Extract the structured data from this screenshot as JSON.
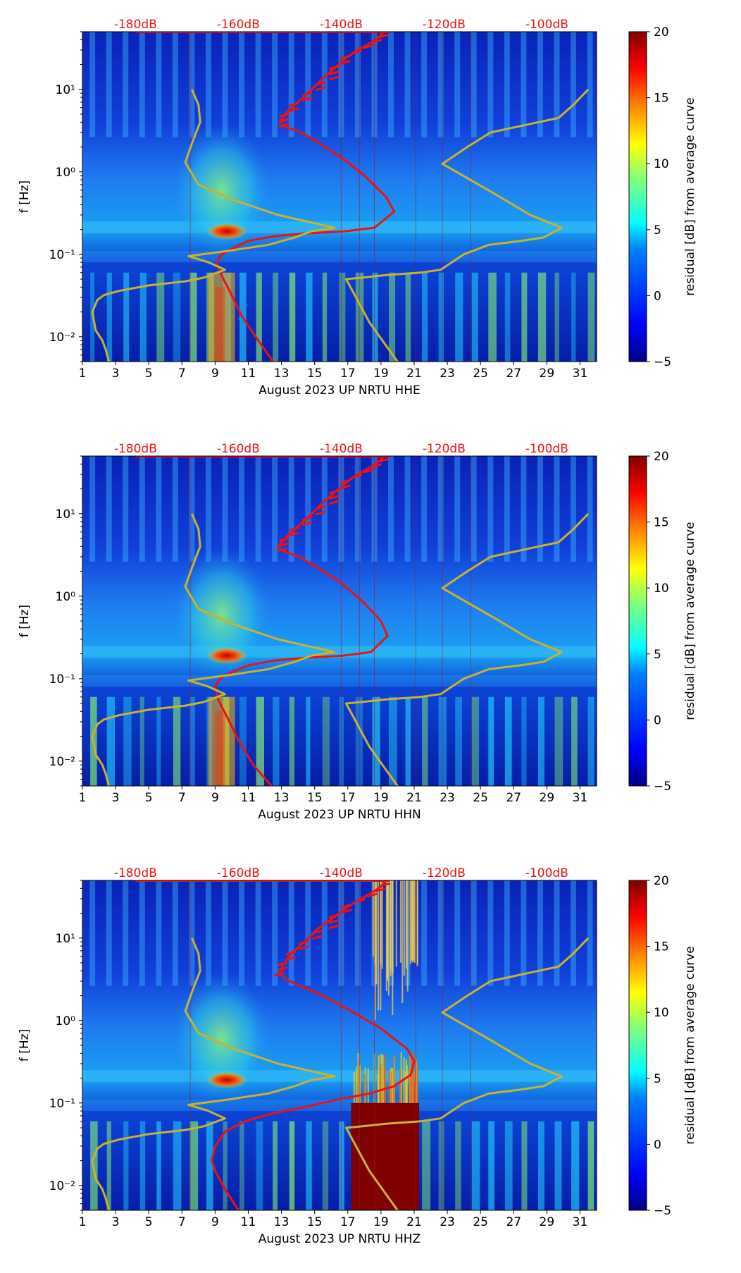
{
  "colors": {
    "red_curve": "#ee1111",
    "yellow_curve": "#c8b22e",
    "db_label": "#ee1111",
    "background_blue": "#0a2ec8",
    "colormap": [
      "#00007f",
      "#0000ff",
      "#007fff",
      "#00ffff",
      "#7fff7f",
      "#ffff00",
      "#ff7f00",
      "#ff0000",
      "#7f0000"
    ]
  },
  "chart_data": [
    {
      "type": "heatmap",
      "title": "",
      "xlabel": "August 2023 UP NRTU  HHE",
      "ylabel": "f [Hz]",
      "xlim": [
        1,
        32
      ],
      "x_ticks": [
        "1",
        "3",
        "5",
        "7",
        "9",
        "11",
        "13",
        "15",
        "17",
        "19",
        "21",
        "23",
        "25",
        "27",
        "29",
        "31"
      ],
      "ylim": [
        0.005,
        50
      ],
      "y_ticks": [
        {
          "value": 0.01,
          "label": "10⁻²"
        },
        {
          "value": 0.1,
          "label": "10⁻¹"
        },
        {
          "value": 1,
          "label": "10⁰"
        },
        {
          "value": 10,
          "label": "10¹"
        }
      ],
      "db_scale": [
        {
          "x": 4.2,
          "label": "-180dB"
        },
        {
          "x": 10.4,
          "label": "-160dB"
        },
        {
          "x": 16.6,
          "label": "-140dB"
        },
        {
          "x": 22.8,
          "label": "-120dB"
        },
        {
          "x": 29.0,
          "label": "-100dB"
        }
      ],
      "colorbar": {
        "label": "residual [dB] from average curve",
        "min": -5,
        "max": 20,
        "ticks": [
          "20",
          "15",
          "10",
          "5",
          "0",
          "−5"
        ]
      },
      "series": [
        {
          "name": "red noise curve",
          "x": [
            12.5,
            11.6,
            10.6,
            9.9,
            9.4,
            9.1,
            9.4,
            10.1,
            11.0,
            12.5,
            14.6,
            16.8,
            18.6,
            19.8,
            19.3,
            18.0,
            16.6,
            15.3,
            14.2,
            13.2,
            12.9,
            13.2,
            13.8,
            14.6,
            15.4,
            16.2,
            16.9,
            17.6,
            18.3,
            18.8,
            19.2
          ],
          "y": [
            0.005,
            0.009,
            0.018,
            0.035,
            0.055,
            0.08,
            0.1,
            0.12,
            0.145,
            0.165,
            0.18,
            0.19,
            0.21,
            0.33,
            0.5,
            0.9,
            1.5,
            2.2,
            3.0,
            3.5,
            4.0,
            5.0,
            6.5,
            9.0,
            13,
            18,
            24,
            30,
            36,
            42,
            50
          ]
        },
        {
          "name": "yellow model curve left",
          "x": [
            2.6,
            2.4,
            2.2,
            1.8,
            1.6,
            1.9,
            2.3,
            3.2,
            5.0,
            7.2,
            8.3,
            9.6,
            8.6,
            7.4,
            9.8,
            12.2,
            13.8,
            14.8,
            16.2,
            12.8,
            10.2,
            8.0,
            7.2,
            7.6,
            8.1,
            8.0,
            7.6
          ],
          "y": [
            0.005,
            0.007,
            0.009,
            0.012,
            0.02,
            0.028,
            0.032,
            0.036,
            0.042,
            0.047,
            0.052,
            0.065,
            0.08,
            0.095,
            0.11,
            0.13,
            0.16,
            0.19,
            0.21,
            0.3,
            0.45,
            0.7,
            1.3,
            2.2,
            4.0,
            6.5,
            10
          ]
        },
        {
          "name": "yellow model curve right",
          "x": [
            20.0,
            18.3,
            16.9,
            17.8,
            19.3,
            21.4,
            22.6,
            24.0,
            25.5,
            27.4,
            28.8,
            29.9,
            28.0,
            25.8,
            22.7,
            24.2,
            25.6,
            28.5,
            29.7,
            30.6,
            31.5
          ],
          "y": [
            0.005,
            0.015,
            0.05,
            0.052,
            0.056,
            0.06,
            0.065,
            0.1,
            0.13,
            0.145,
            0.16,
            0.21,
            0.3,
            0.55,
            1.25,
            2.0,
            3.0,
            4.0,
            4.5,
            6.5,
            10
          ]
        }
      ]
    },
    {
      "type": "heatmap",
      "title": "",
      "xlabel": "August 2023 UP NRTU  HHN",
      "ylabel": "f [Hz]",
      "xlim": [
        1,
        32
      ],
      "x_ticks": [
        "1",
        "3",
        "5",
        "7",
        "9",
        "11",
        "13",
        "15",
        "17",
        "19",
        "21",
        "23",
        "25",
        "27",
        "29",
        "31"
      ],
      "ylim": [
        0.005,
        50
      ],
      "y_ticks": [
        {
          "value": 0.01,
          "label": "10⁻²"
        },
        {
          "value": 0.1,
          "label": "10⁻¹"
        },
        {
          "value": 1,
          "label": "10⁰"
        },
        {
          "value": 10,
          "label": "10¹"
        }
      ],
      "db_scale": [
        {
          "x": 4.2,
          "label": "-180dB"
        },
        {
          "x": 10.4,
          "label": "-160dB"
        },
        {
          "x": 16.6,
          "label": "-140dB"
        },
        {
          "x": 22.8,
          "label": "-120dB"
        },
        {
          "x": 29.0,
          "label": "-100dB"
        }
      ],
      "colorbar": {
        "label": "residual [dB] from average curve",
        "min": -5,
        "max": 20,
        "ticks": [
          "20",
          "15",
          "10",
          "5",
          "0",
          "−5"
        ]
      },
      "series": [
        {
          "name": "red noise curve",
          "x": [
            12.4,
            11.3,
            10.4,
            9.7,
            9.2,
            9.0,
            9.3,
            10.0,
            11.0,
            12.5,
            14.6,
            16.7,
            18.4,
            19.4,
            19.0,
            17.8,
            16.5,
            15.2,
            14.1,
            13.1,
            12.8,
            13.2,
            13.8,
            14.6,
            15.4,
            16.2,
            16.9,
            17.6,
            18.3,
            18.8,
            19.2
          ],
          "y": [
            0.005,
            0.009,
            0.018,
            0.035,
            0.055,
            0.08,
            0.1,
            0.12,
            0.145,
            0.165,
            0.18,
            0.19,
            0.21,
            0.33,
            0.5,
            0.9,
            1.5,
            2.2,
            3.0,
            3.5,
            4.0,
            5.0,
            6.5,
            9.0,
            13,
            18,
            24,
            30,
            36,
            42,
            50
          ]
        },
        {
          "name": "yellow model curve left",
          "x": [
            2.6,
            2.4,
            2.2,
            1.8,
            1.6,
            1.9,
            2.3,
            3.2,
            5.0,
            7.2,
            8.3,
            9.6,
            8.6,
            7.4,
            9.8,
            12.2,
            13.8,
            14.8,
            16.2,
            12.8,
            10.2,
            8.0,
            7.2,
            7.6,
            8.1,
            8.0,
            7.6
          ],
          "y": [
            0.005,
            0.007,
            0.009,
            0.012,
            0.02,
            0.028,
            0.032,
            0.036,
            0.042,
            0.047,
            0.052,
            0.065,
            0.08,
            0.095,
            0.11,
            0.13,
            0.16,
            0.19,
            0.21,
            0.3,
            0.45,
            0.7,
            1.3,
            2.2,
            4.0,
            6.5,
            10
          ]
        },
        {
          "name": "yellow model curve right",
          "x": [
            20.0,
            18.3,
            16.9,
            17.8,
            19.3,
            21.4,
            22.6,
            24.0,
            25.5,
            27.4,
            28.8,
            29.9,
            28.0,
            25.8,
            22.7,
            24.2,
            25.6,
            28.5,
            29.7,
            30.6,
            31.5
          ],
          "y": [
            0.005,
            0.015,
            0.05,
            0.052,
            0.056,
            0.06,
            0.065,
            0.1,
            0.13,
            0.145,
            0.16,
            0.21,
            0.3,
            0.55,
            1.25,
            2.0,
            3.0,
            4.0,
            4.5,
            6.5,
            10
          ]
        }
      ]
    },
    {
      "type": "heatmap",
      "title": "",
      "xlabel": "August 2023 UP NRTU  HHZ",
      "ylabel": "f [Hz]",
      "xlim": [
        1,
        32
      ],
      "x_ticks": [
        "1",
        "3",
        "5",
        "7",
        "9",
        "11",
        "13",
        "15",
        "17",
        "19",
        "21",
        "23",
        "25",
        "27",
        "29",
        "31"
      ],
      "ylim": [
        0.005,
        50
      ],
      "y_ticks": [
        {
          "value": 0.01,
          "label": "10⁻²"
        },
        {
          "value": 0.1,
          "label": "10⁻¹"
        },
        {
          "value": 1,
          "label": "10⁰"
        },
        {
          "value": 10,
          "label": "10¹"
        }
      ],
      "db_scale": [
        {
          "x": 4.2,
          "label": "-180dB"
        },
        {
          "x": 10.4,
          "label": "-160dB"
        },
        {
          "x": 16.6,
          "label": "-140dB"
        },
        {
          "x": 22.8,
          "label": "-120dB"
        },
        {
          "x": 29.0,
          "label": "-100dB"
        }
      ],
      "colorbar": {
        "label": "residual [dB] from average curve",
        "min": -5,
        "max": 20,
        "ticks": [
          "20",
          "15",
          "10",
          "5",
          "0",
          "−5"
        ]
      },
      "high_residual_block": {
        "x_range": [
          17.2,
          21.3
        ],
        "y_range": [
          0.005,
          0.1
        ],
        "value": 20
      },
      "series": [
        {
          "name": "red noise curve",
          "x": [
            10.4,
            9.6,
            9.0,
            8.8,
            9.0,
            9.6,
            10.8,
            12.5,
            14.5,
            16.4,
            18.3,
            19.8,
            20.8,
            21.0,
            20.6,
            19.0,
            17.2,
            15.5,
            14.2,
            13.2,
            12.9,
            13.1,
            13.6,
            14.4,
            15.2,
            16.2,
            17.0,
            17.8,
            18.5,
            19.0,
            19.3
          ],
          "y": [
            0.005,
            0.009,
            0.015,
            0.02,
            0.03,
            0.045,
            0.06,
            0.075,
            0.09,
            0.11,
            0.13,
            0.16,
            0.22,
            0.32,
            0.45,
            0.8,
            1.3,
            2.0,
            2.6,
            3.2,
            3.8,
            4.8,
            6.5,
            9.0,
            13,
            18,
            24,
            30,
            36,
            42,
            50
          ]
        },
        {
          "name": "yellow model curve left",
          "x": [
            2.6,
            2.4,
            2.2,
            1.8,
            1.6,
            1.9,
            2.3,
            3.2,
            5.0,
            7.2,
            8.3,
            9.6,
            8.6,
            7.4,
            9.8,
            12.2,
            13.8,
            14.8,
            16.2,
            12.8,
            10.2,
            8.0,
            7.2,
            7.6,
            8.1,
            8.0,
            7.6
          ],
          "y": [
            0.005,
            0.007,
            0.009,
            0.012,
            0.02,
            0.028,
            0.032,
            0.036,
            0.042,
            0.047,
            0.052,
            0.065,
            0.08,
            0.095,
            0.11,
            0.13,
            0.16,
            0.19,
            0.21,
            0.3,
            0.45,
            0.7,
            1.3,
            2.2,
            4.0,
            6.5,
            10
          ]
        },
        {
          "name": "yellow model curve right",
          "x": [
            20.0,
            18.3,
            16.9,
            17.8,
            19.3,
            21.4,
            22.6,
            24.0,
            25.5,
            27.4,
            28.8,
            29.9,
            28.0,
            25.8,
            22.7,
            24.2,
            25.6,
            28.5,
            29.7,
            30.6,
            31.5
          ],
          "y": [
            0.005,
            0.015,
            0.05,
            0.052,
            0.056,
            0.06,
            0.065,
            0.1,
            0.13,
            0.145,
            0.16,
            0.21,
            0.3,
            0.55,
            1.25,
            2.0,
            3.0,
            4.0,
            4.5,
            6.5,
            10
          ]
        }
      ]
    }
  ]
}
